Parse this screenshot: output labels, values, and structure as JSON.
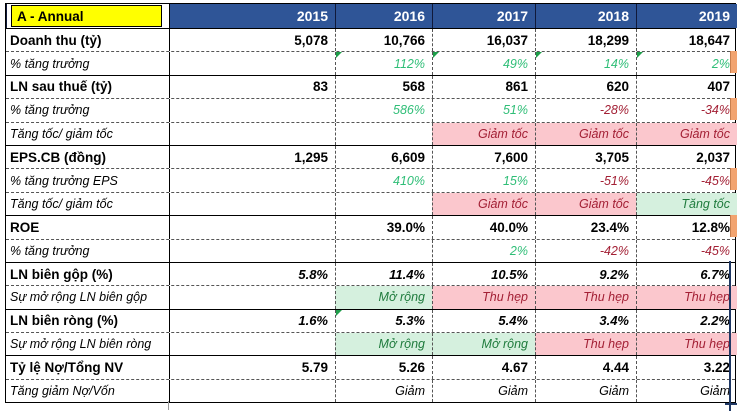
{
  "palette": {
    "header_blue": "#2F5597",
    "header_text": "#FFFFFF",
    "title_bg": "#FFFF00",
    "title_text": "#000000",
    "pos_green": "#2FBE77",
    "neg_red": "#A32035",
    "bad_bg": "#FBC7CD",
    "bad_text": "#A32035",
    "good_bg": "#D5F0DE",
    "good_text": "#1F7B3D",
    "marker_green": "#1E9E4A",
    "navy": "#1F3864",
    "orange": "#F2A470"
  },
  "table": {
    "title": "A - Annual",
    "years": [
      "2015",
      "2016",
      "2017",
      "2018",
      "2019"
    ],
    "status_good_values": [
      "Tăng tốc",
      "Mở rộng"
    ],
    "status_bad_values": [
      "Giảm tốc",
      "Thu hẹp"
    ],
    "rows": [
      {
        "label": "Doanh thu (tỷ)",
        "type": "number",
        "section": true,
        "cells": [
          "5,078",
          "10,766",
          "16,037",
          "18,299",
          "18,647"
        ]
      },
      {
        "label": "% tăng trưởng",
        "type": "growth",
        "cells": [
          "",
          "112%",
          "49%",
          "14%",
          "2%"
        ],
        "corners": [
          1,
          2,
          3,
          4
        ]
      },
      {
        "label": "LN sau thuế (tỷ)",
        "type": "number",
        "section": true,
        "cells": [
          "83",
          "568",
          "861",
          "620",
          "407"
        ]
      },
      {
        "label": "% tăng trưởng",
        "type": "growth",
        "cells": [
          "",
          "586%",
          "51%",
          "-28%",
          "-34%"
        ]
      },
      {
        "label": "Tăng tốc/ giảm tốc",
        "type": "status",
        "cells": [
          "",
          "",
          "Giảm tốc",
          "Giảm tốc",
          "Giảm tốc"
        ]
      },
      {
        "label": "EPS.CB (đồng)",
        "type": "number",
        "section": true,
        "cells": [
          "1,295",
          "6,609",
          "7,600",
          "3,705",
          "2,037"
        ]
      },
      {
        "label": "% tăng trưởng EPS",
        "type": "growth",
        "cells": [
          "",
          "410%",
          "15%",
          "-51%",
          "-45%"
        ]
      },
      {
        "label": "Tăng tốc/ giảm tốc",
        "type": "status",
        "cells": [
          "",
          "",
          "Giảm tốc",
          "Giảm tốc",
          "Tăng tốc"
        ]
      },
      {
        "label": "ROE",
        "type": "number",
        "section": true,
        "cells": [
          "",
          "39.0%",
          "40.0%",
          "23.4%",
          "12.8%"
        ]
      },
      {
        "label": "% tăng trưởng",
        "type": "growth",
        "cells": [
          "",
          "",
          "2%",
          "-42%",
          "-45%"
        ]
      },
      {
        "label": "LN biên gộp (%)",
        "type": "number-italic",
        "section": true,
        "cells": [
          "5.8%",
          "11.4%",
          "10.5%",
          "9.2%",
          "6.7%"
        ]
      },
      {
        "label": "Sự mở rộng LN biên gộp",
        "type": "status",
        "cells": [
          "",
          "Mở rộng",
          "Thu hẹp",
          "Thu hẹp",
          "Thu hẹp"
        ]
      },
      {
        "label": "LN biên ròng (%)",
        "type": "number-italic",
        "section": true,
        "cells": [
          "1.6%",
          "5.3%",
          "5.4%",
          "3.4%",
          "2.2%"
        ],
        "corners": [
          1
        ]
      },
      {
        "label": "Sự mở rộng LN biên ròng",
        "type": "status",
        "cells": [
          "",
          "Mở rộng",
          "Mở rộng",
          "Thu hẹp",
          "Thu hẹp"
        ]
      },
      {
        "label": "Tỷ lệ Nợ/Tổng NV",
        "type": "number",
        "section": true,
        "cells": [
          "5.79",
          "5.26",
          "4.67",
          "4.44",
          "3.22"
        ]
      },
      {
        "label": "Tăng giảm Nợ/Vốn",
        "type": "plain",
        "cells": [
          "",
          "Giảm",
          "Giảm",
          "Giảm",
          "Giảm"
        ]
      }
    ]
  }
}
